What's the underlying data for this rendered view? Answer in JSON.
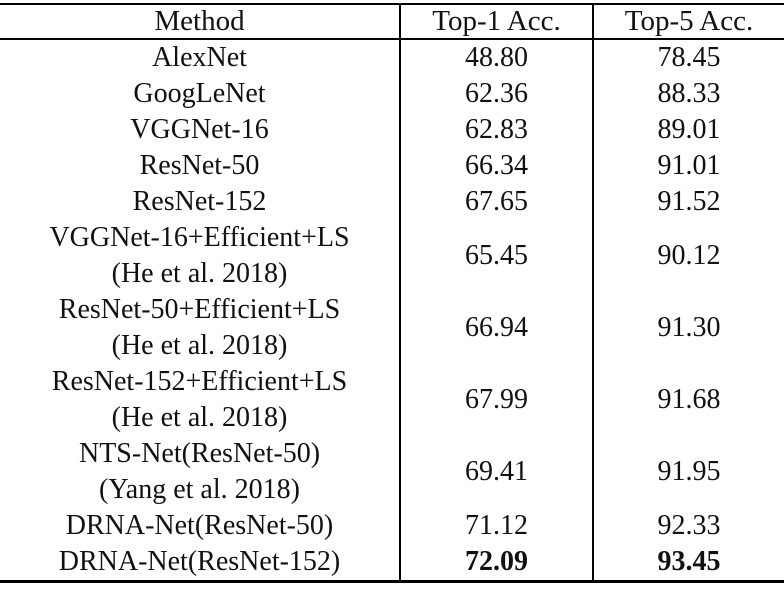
{
  "table": {
    "columns": [
      {
        "label": "Method"
      },
      {
        "label": "Top-1 Acc."
      },
      {
        "label": "Top-5 Acc."
      }
    ],
    "rows": [
      {
        "method": [
          "AlexNet"
        ],
        "top1": "48.80",
        "top5": "78.45",
        "bold": false
      },
      {
        "method": [
          "GoogLeNet"
        ],
        "top1": "62.36",
        "top5": "88.33",
        "bold": false
      },
      {
        "method": [
          "VGGNet-16"
        ],
        "top1": "62.83",
        "top5": "89.01",
        "bold": false
      },
      {
        "method": [
          "ResNet-50"
        ],
        "top1": "66.34",
        "top5": "91.01",
        "bold": false
      },
      {
        "method": [
          "ResNet-152"
        ],
        "top1": "67.65",
        "top5": "91.52",
        "bold": false
      },
      {
        "method": [
          "VGGNet-16+Efficient+LS",
          "(He et al. 2018)"
        ],
        "top1": "65.45",
        "top5": "90.12",
        "bold": false
      },
      {
        "method": [
          "ResNet-50+Efficient+LS",
          "(He et al. 2018)"
        ],
        "top1": "66.94",
        "top5": "91.30",
        "bold": false
      },
      {
        "method": [
          "ResNet-152+Efficient+LS",
          "(He et al. 2018)"
        ],
        "top1": "67.99",
        "top5": "91.68",
        "bold": false
      },
      {
        "method": [
          "NTS-Net(ResNet-50)",
          "(Yang et al. 2018)"
        ],
        "top1": "69.41",
        "top5": "91.95",
        "bold": false
      },
      {
        "method": [
          "DRNA-Net(ResNet-50)"
        ],
        "top1": "71.12",
        "top5": "92.33",
        "bold": false
      },
      {
        "method": [
          "DRNA-Net(ResNet-152)"
        ],
        "top1": "72.09",
        "top5": "93.45",
        "bold": true
      }
    ]
  },
  "colors": {
    "background": "#ffffff",
    "text": "#111111",
    "rule": "#000000"
  }
}
